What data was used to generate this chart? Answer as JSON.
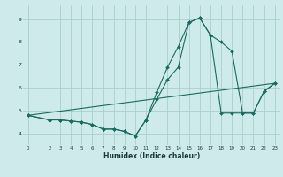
{
  "xlabel": "Humidex (Indice chaleur)",
  "background_color": "#ceeaea",
  "grid_color": "#aacfcf",
  "line_color": "#1a6b60",
  "xlim": [
    -0.5,
    23.5
  ],
  "ylim": [
    3.5,
    9.6
  ],
  "yticks": [
    4,
    5,
    6,
    7,
    8,
    9
  ],
  "xticks": [
    0,
    2,
    3,
    4,
    5,
    6,
    7,
    8,
    9,
    10,
    11,
    12,
    13,
    14,
    15,
    16,
    17,
    18,
    19,
    20,
    21,
    22,
    23
  ],
  "series": [
    {
      "x": [
        0,
        2,
        3,
        4,
        5,
        6,
        7,
        8,
        9,
        10,
        11,
        12,
        13,
        14,
        15,
        16,
        17,
        18,
        19,
        20,
        21,
        22,
        23
      ],
      "y": [
        4.8,
        4.6,
        4.6,
        4.55,
        4.5,
        4.4,
        4.2,
        4.2,
        4.1,
        3.9,
        4.6,
        5.8,
        6.9,
        7.8,
        8.85,
        9.05,
        8.3,
        8.0,
        7.6,
        4.9,
        4.9,
        5.85,
        6.2
      ]
    },
    {
      "x": [
        0,
        2,
        3,
        4,
        5,
        6,
        7,
        8,
        9,
        10,
        11,
        12,
        13,
        14,
        15,
        16,
        17,
        18,
        19,
        20,
        21,
        22,
        23
      ],
      "y": [
        4.8,
        4.6,
        4.6,
        4.55,
        4.5,
        4.4,
        4.2,
        4.2,
        4.1,
        3.9,
        4.6,
        5.5,
        6.35,
        6.9,
        8.85,
        9.05,
        8.3,
        4.9,
        4.9,
        4.9,
        4.9,
        5.85,
        6.2
      ]
    },
    {
      "x": [
        0,
        23
      ],
      "y": [
        4.8,
        6.2
      ]
    }
  ]
}
